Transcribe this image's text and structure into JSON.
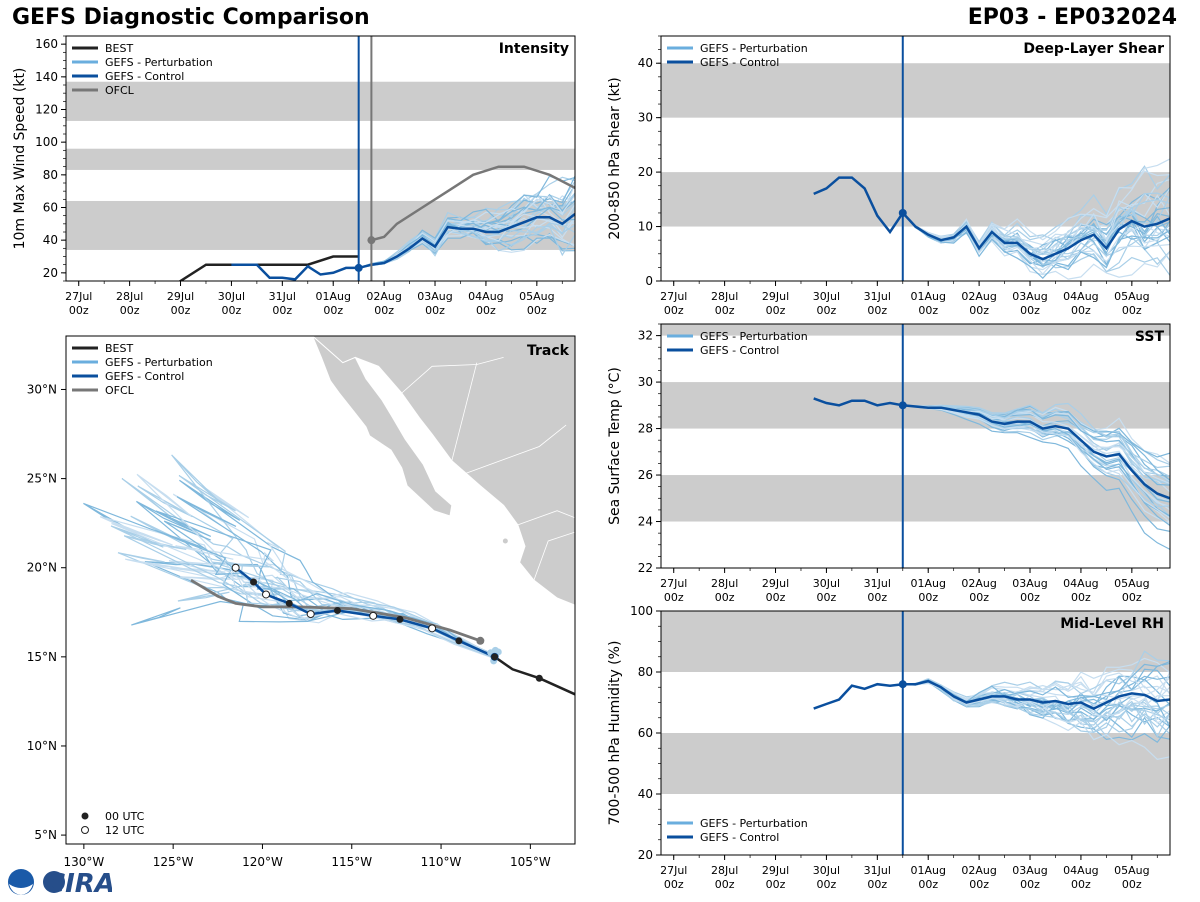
{
  "header": {
    "left_title": "GEFS Diagnostic Comparison",
    "right_title": "EP03 - EP032024"
  },
  "colors": {
    "best": "#222222",
    "perturbation": "#6aaede",
    "control": "#0a4f9e",
    "ofcl": "#777777",
    "band": "#cccccc"
  },
  "time_ticks": [
    "27Jul\n00z",
    "28Jul\n00z",
    "29Jul\n00z",
    "30Jul\n00z",
    "31Jul\n00z",
    "01Aug\n00z",
    "02Aug\n00z",
    "03Aug\n00z",
    "04Aug\n00z",
    "05Aug\n00z"
  ],
  "chart_data": [
    {
      "id": "intensity",
      "type": "line",
      "title": "Intensity",
      "ylabel": "10m Max Wind Speed (kt)",
      "xlim": [
        -0.25,
        9.75
      ],
      "ylim": [
        15,
        165
      ],
      "yticks": [
        20,
        40,
        60,
        80,
        100,
        120,
        140,
        160
      ],
      "bands": [
        [
          34,
          64
        ],
        [
          83,
          96
        ],
        [
          113,
          137
        ]
      ],
      "init_time": 5.5,
      "ofcl_time": 5.75,
      "legend": [
        "BEST",
        "GEFS - Perturbation",
        "GEFS - Control",
        "OFCL"
      ],
      "series": [
        {
          "name": "BEST",
          "x": [
            1.5,
            2.0,
            2.5,
            3.0,
            3.5,
            4.0,
            4.5,
            5.0,
            5.5
          ],
          "y": [
            5,
            15,
            25,
            25,
            25,
            25,
            25,
            30,
            30
          ]
        },
        {
          "name": "GEFS - Control",
          "x": [
            5.5,
            5.75,
            6.0,
            6.25,
            6.5,
            6.75,
            7.0,
            7.25,
            7.5,
            7.75,
            8.0,
            8.25,
            8.5,
            8.75,
            9.0,
            9.25,
            9.5,
            9.75
          ],
          "y": [
            23,
            25,
            26,
            30,
            35,
            41,
            36,
            48,
            47,
            47,
            45,
            45,
            48,
            51,
            54,
            54,
            50,
            56
          ]
        },
        {
          "name": "GEFS - Control (history)",
          "x": [
            3.0,
            3.25,
            3.5,
            3.75,
            4.0,
            4.25,
            4.5,
            4.75,
            5.0,
            5.25,
            5.5
          ],
          "y": [
            25,
            25,
            25,
            17,
            17,
            16,
            24,
            19,
            20,
            23,
            23
          ]
        },
        {
          "name": "OFCL",
          "x": [
            5.75,
            6.0,
            6.25,
            6.75,
            7.25,
            7.75,
            8.25,
            8.75,
            9.25,
            9.75
          ],
          "y": [
            40,
            42,
            50,
            60,
            70,
            80,
            85,
            85,
            80,
            72
          ]
        }
      ]
    },
    {
      "id": "shear",
      "type": "line",
      "title": "Deep-Layer Shear",
      "ylabel": "200-850 hPa Shear (kt)",
      "xlim": [
        -0.25,
        9.75
      ],
      "ylim": [
        0,
        45
      ],
      "yticks": [
        0,
        10,
        20,
        30,
        40
      ],
      "bands": [
        [
          10,
          20
        ],
        [
          30,
          40
        ]
      ],
      "init_time": 4.5,
      "legend": [
        "GEFS - Perturbation",
        "GEFS - Control"
      ],
      "series": [
        {
          "name": "GEFS - Control",
          "x": [
            2.75,
            3.0,
            3.25,
            3.5,
            3.75,
            4.0,
            4.25,
            4.5,
            4.75,
            5.0,
            5.25,
            5.5,
            5.75,
            6.0,
            6.25,
            6.5,
            6.75,
            7.0,
            7.25,
            7.5,
            7.75,
            8.0,
            8.25,
            8.5,
            8.75,
            9.0,
            9.25,
            9.5,
            9.75
          ],
          "y": [
            16,
            17,
            19,
            19,
            17,
            12,
            9,
            12.5,
            10,
            8.5,
            7.5,
            8,
            10,
            6,
            9,
            7,
            7,
            5,
            4,
            5,
            6,
            7.5,
            8.5,
            6,
            9.5,
            11,
            10,
            10.5,
            11.5
          ]
        }
      ]
    },
    {
      "id": "sst",
      "type": "line",
      "title": "SST",
      "ylabel": "Sea Surface Temp (°C)",
      "xlim": [
        -0.25,
        9.75
      ],
      "ylim": [
        22,
        32.5
      ],
      "yticks": [
        22,
        24,
        26,
        28,
        30,
        32
      ],
      "bands": [
        [
          24,
          26
        ],
        [
          28,
          30
        ],
        [
          32,
          33
        ]
      ],
      "init_time": 4.5,
      "legend": [
        "GEFS - Perturbation",
        "GEFS - Control"
      ],
      "series": [
        {
          "name": "GEFS - Control",
          "x": [
            2.75,
            3.0,
            3.25,
            3.5,
            3.75,
            4.0,
            4.25,
            4.5,
            4.75,
            5.0,
            5.25,
            5.5,
            5.75,
            6.0,
            6.25,
            6.5,
            6.75,
            7.0,
            7.25,
            7.5,
            7.75,
            8.0,
            8.25,
            8.5,
            8.75,
            9.0,
            9.25,
            9.5,
            9.75
          ],
          "y": [
            29.3,
            29.1,
            29.0,
            29.2,
            29.2,
            29.0,
            29.1,
            29.0,
            28.95,
            28.9,
            28.9,
            28.8,
            28.7,
            28.6,
            28.3,
            28.2,
            28.3,
            28.3,
            28.0,
            28.1,
            28.0,
            27.5,
            27.0,
            26.8,
            26.9,
            26.2,
            25.6,
            25.2,
            25.0
          ]
        }
      ]
    },
    {
      "id": "rh",
      "type": "line",
      "title": "Mid-Level RH",
      "ylabel": "700-500 hPa Humidity (%)",
      "xlim": [
        -0.25,
        9.75
      ],
      "ylim": [
        20,
        100
      ],
      "yticks": [
        20,
        40,
        60,
        80,
        100
      ],
      "bands": [
        [
          40,
          60
        ],
        [
          80,
          100
        ]
      ],
      "init_time": 4.5,
      "legend": [
        "GEFS - Perturbation",
        "GEFS - Control"
      ],
      "series": [
        {
          "name": "GEFS - Control",
          "x": [
            2.75,
            3.0,
            3.25,
            3.5,
            3.75,
            4.0,
            4.25,
            4.5,
            4.75,
            5.0,
            5.25,
            5.5,
            5.75,
            6.0,
            6.25,
            6.5,
            6.75,
            7.0,
            7.25,
            7.5,
            7.75,
            8.0,
            8.25,
            8.5,
            8.75,
            9.0,
            9.25,
            9.5,
            9.75
          ],
          "y": [
            68,
            69.5,
            71,
            75.5,
            74.5,
            76,
            75.5,
            76,
            76,
            77,
            75,
            72,
            70,
            71,
            72,
            72,
            71,
            71,
            70,
            70.5,
            69.5,
            70,
            68,
            70,
            72,
            73,
            72.5,
            70.5,
            71
          ]
        }
      ]
    },
    {
      "id": "track",
      "type": "map",
      "title": "Track",
      "xlim": [
        -131,
        -102.5
      ],
      "ylim": [
        4.5,
        33
      ],
      "xticks": [
        "130°W",
        "125°W",
        "120°W",
        "115°W",
        "110°W",
        "105°W"
      ],
      "xtick_values": [
        -130,
        -125,
        -120,
        -115,
        -110,
        -105
      ],
      "yticks": [
        "5°N",
        "10°N",
        "15°N",
        "20°N",
        "25°N",
        "30°N"
      ],
      "ytick_values": [
        5,
        10,
        15,
        20,
        25,
        30
      ],
      "legend": [
        "BEST",
        "GEFS - Perturbation",
        "GEFS - Control",
        "OFCL"
      ],
      "marker_legend": [
        "00 UTC",
        "12 UTC"
      ],
      "best_track": {
        "lon": [
          -102.5,
          -104.5,
          -106.0,
          -107.0
        ],
        "lat": [
          12.9,
          13.8,
          14.3,
          15.0
        ]
      },
      "control_track": {
        "lon": [
          -107.0,
          -109.0,
          -110.5,
          -112.3,
          -113.8,
          -115.8,
          -117.3,
          -118.5,
          -119.8,
          -120.5,
          -121.0,
          -121.5
        ],
        "lat": [
          15.0,
          15.9,
          16.6,
          17.1,
          17.3,
          17.6,
          17.4,
          18.0,
          18.5,
          19.2,
          19.6,
          20.0
        ]
      },
      "ofcl_track": {
        "lon": [
          -107.8,
          -109.5,
          -112,
          -115,
          -118,
          -120,
          -121.5,
          -122.5,
          -124
        ],
        "lat": [
          15.9,
          16.5,
          17.2,
          17.7,
          17.8,
          17.8,
          18.0,
          18.4,
          19.3
        ]
      },
      "markers_00utc": {
        "lon": [
          -104.5,
          -109.0,
          -112.3,
          -115.8,
          -118.5,
          -120.5,
          -107.0
        ],
        "lat": [
          13.8,
          15.9,
          17.1,
          17.6,
          18.0,
          19.2,
          15.0
        ]
      },
      "markers_12utc": {
        "lon": [
          -110.5,
          -113.8,
          -117.3,
          -119.8,
          -121.5
        ],
        "lat": [
          16.6,
          17.3,
          17.4,
          18.5,
          20.0
        ]
      }
    }
  ]
}
